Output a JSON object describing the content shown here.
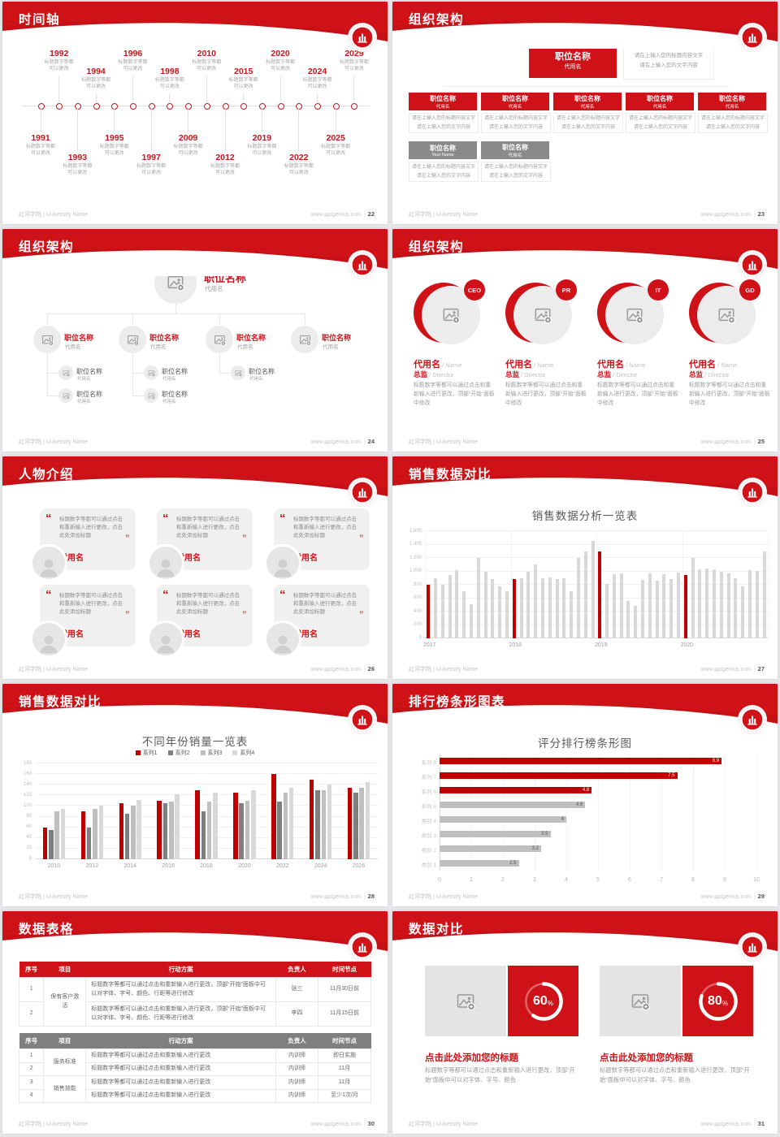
{
  "footer": {
    "left": "红河学院 | University Name",
    "site": "www.pptgenius.com",
    "sep": "|"
  },
  "colors": {
    "primary_red": "#cf1217",
    "chart_red": "#c00000",
    "bar_gray": "#d8d8d8",
    "series2_gray": "#7f7f7f",
    "series3_gray": "#bfbfbf",
    "series4_gray": "#d9d9d9",
    "box_gray": "#8a8a8a"
  },
  "icons": {
    "quote_open": "“",
    "quote_close": "”"
  },
  "slides": {
    "timeline": {
      "title": "时间轴",
      "page": "22",
      "caption": [
        "标题数字等都",
        "可以更改"
      ],
      "points": [
        {
          "year": "1991",
          "side": "bottom",
          "level": 1
        },
        {
          "year": "1992",
          "side": "top",
          "level": 2
        },
        {
          "year": "1993",
          "side": "bottom",
          "level": 2
        },
        {
          "year": "1994",
          "side": "top",
          "level": 1
        },
        {
          "year": "1995",
          "side": "bottom",
          "level": 1
        },
        {
          "year": "1996",
          "side": "top",
          "level": 2
        },
        {
          "year": "1997",
          "side": "bottom",
          "level": 2
        },
        {
          "year": "1998",
          "side": "top",
          "level": 1
        },
        {
          "year": "2009",
          "side": "bottom",
          "level": 1
        },
        {
          "year": "2010",
          "side": "top",
          "level": 2
        },
        {
          "year": "2012",
          "side": "bottom",
          "level": 2
        },
        {
          "year": "2015",
          "side": "top",
          "level": 1
        },
        {
          "year": "2019",
          "side": "bottom",
          "level": 1
        },
        {
          "year": "2020",
          "side": "top",
          "level": 2
        },
        {
          "year": "2022",
          "side": "bottom",
          "level": 2
        },
        {
          "year": "2024",
          "side": "top",
          "level": 1
        },
        {
          "year": "2025",
          "side": "bottom",
          "level": 1
        },
        {
          "year": "2029",
          "side": "top",
          "level": 2
        }
      ]
    },
    "org_boxes": {
      "title": "组织架构",
      "page": "23",
      "box_title": "职位名称",
      "box_sub": "代用名",
      "note": [
        "请在上输入您的标题内容文字",
        "请在上输入您的文字内容"
      ],
      "row1_count": 5,
      "row2": [
        {
          "sub": "Your Name"
        },
        {
          "sub": "代用名"
        }
      ]
    },
    "org_tree": {
      "title": "组织架构",
      "page": "24",
      "node_title": "职位名称",
      "node_sub": "代用名",
      "children": [
        {
          "kids": 2
        },
        {
          "kids": 2
        },
        {
          "kids": 1
        },
        {
          "kids": 0
        }
      ]
    },
    "org_profiles": {
      "title": "组织架构",
      "page": "25",
      "profiles": [
        {
          "badge": "CEO"
        },
        {
          "badge": "PR"
        },
        {
          "badge": "IT"
        },
        {
          "badge": "GD"
        }
      ],
      "name": "代用名",
      "name_en": "Name",
      "role": "总监",
      "role_en": "Director",
      "desc": "标题数字等都可以通过点击和重新输入进行更改，顶部“开始”面板中修改"
    },
    "people": {
      "title": "人物介绍",
      "page": "26",
      "cards_count": 6,
      "quote": "标题数字等都可以通过点击和重新输入进行更改，点击此处添加标题",
      "name": "代用名"
    },
    "sales_monthly": {
      "title": "销售数据对比",
      "page": "27",
      "chart_index": 0
    },
    "sales_yearly": {
      "title": "销售数据对比",
      "page": "28",
      "chart_index": 1
    },
    "ranking": {
      "title": "排行榜条形图表",
      "page": "29",
      "chart_index": 2
    },
    "tables": {
      "title": "数据表格",
      "page": "30",
      "columns": [
        "序号",
        "项目",
        "行动方案",
        "负责人",
        "时间节点"
      ],
      "table1": {
        "groups": [
          {
            "label": "保有客户激活",
            "rows": [
              {
                "no": "1",
                "plan": "标题数字等都可以通过点击和重新输入进行更改，顶部“开始”面板中可以对字体、字号、颜色、行距等进行修改",
                "owner": "张三",
                "time": "11月30日前"
              },
              {
                "no": "2",
                "plan": "标题数字等都可以通过点击和重新输入进行更改，顶部“开始”面板中可以对字体、字号、颜色、行距等进行修改",
                "owner": "李四",
                "time": "11月15日前"
              }
            ]
          }
        ]
      },
      "table2": {
        "groups": [
          {
            "label": "服务标准",
            "rows": [
              {
                "no": "1",
                "plan": "标题数字等都可以通过点击和重新输入进行更改",
                "owner": "内训师",
                "time": "即日实施"
              },
              {
                "no": "2",
                "plan": "标题数字等都可以通过点击和重新输入进行更改",
                "owner": "内训师",
                "time": "11月"
              }
            ]
          },
          {
            "label": "销售技能",
            "rows": [
              {
                "no": "3",
                "plan": "标题数字等都可以通过点击和重新输入进行更改",
                "owner": "内训师",
                "time": "11月"
              },
              {
                "no": "4",
                "plan": "标题数字等都可以通过点击和重新输入进行更改",
                "owner": "内训师",
                "time": "至少1次/月"
              }
            ]
          }
        ]
      }
    },
    "compare": {
      "title": "数据对比",
      "page": "31",
      "panels": [
        {
          "percent": 60,
          "heading": "点击此处添加您的标题",
          "desc": "标题数字等都可以通过点击和重新输入进行更改，顶部“开始”面板中可以对字体、字号、颜色"
        },
        {
          "percent": 80,
          "heading": "点击此处添加您的标题",
          "desc": "标题数字等都可以通过点击和重新输入进行更改，顶部“开始”面板中可以对字体、字号、颜色"
        }
      ]
    }
  },
  "chart_data": [
    {
      "type": "bar",
      "title": "销售数据分析一览表",
      "x_group_labels": [
        "2017",
        "2018",
        "2019",
        "2020"
      ],
      "bars_per_group": 12,
      "values": [
        800,
        900,
        800,
        950,
        1020,
        700,
        510,
        1200,
        990,
        890,
        780,
        700,
        890,
        900,
        1000,
        1100,
        900,
        905,
        880,
        900,
        700,
        1200,
        1300,
        1450,
        1300,
        810,
        960,
        970,
        560,
        490,
        870,
        975,
        865,
        960,
        890,
        980,
        950,
        1200,
        1030,
        1040,
        1030,
        990,
        975,
        895,
        780,
        1020,
        1005,
        1300
      ],
      "red_indices": [
        0,
        12,
        24,
        36
      ],
      "ylim": [
        0,
        1600
      ],
      "yticks": [
        "0",
        "200",
        "400",
        "600",
        "800",
        "1,000",
        "1,200",
        "1,400",
        "1,600"
      ],
      "grid": true
    },
    {
      "type": "bar",
      "title": "不同年份销量一览表",
      "categories": [
        "2010",
        "2012",
        "2014",
        "2016",
        "2018",
        "2020",
        "2022",
        "2024",
        "2026"
      ],
      "series": [
        {
          "name": "系列1",
          "color": "#c00000",
          "values": [
            60,
            90,
            105,
            110,
            130,
            125,
            160,
            150,
            135
          ]
        },
        {
          "name": "系列2",
          "color": "#7f7f7f",
          "values": [
            55,
            60,
            85,
            105,
            90,
            105,
            108,
            130,
            125
          ]
        },
        {
          "name": "系列3",
          "color": "#bfbfbf",
          "values": [
            90,
            95,
            100,
            108,
            108,
            110,
            125,
            130,
            135
          ]
        },
        {
          "name": "系列4",
          "color": "#d9d9d9",
          "values": [
            95,
            100,
            112,
            122,
            125,
            130,
            135,
            140,
            145
          ]
        }
      ],
      "ylim": [
        0,
        180
      ],
      "yticks": [
        "0",
        "20",
        "40",
        "60",
        "80",
        "100",
        "120",
        "140",
        "160",
        "180"
      ],
      "legend_position": "top",
      "grid": true
    },
    {
      "type": "bar-horizontal",
      "title": "评分排行榜条形图",
      "bars": [
        {
          "label": "系列 8",
          "value": 8.9,
          "color": "#c00000",
          "value_label": "8.9"
        },
        {
          "label": "系列 7",
          "value": 7.5,
          "color": "#c00000",
          "value_label": "7.5"
        },
        {
          "label": "系列 6",
          "value": 4.8,
          "color": "#c00000",
          "value_label": "4.8"
        },
        {
          "label": "系列 5",
          "value": 4.6,
          "color": "#bfbfbf",
          "value_label": "4.6"
        },
        {
          "label": "类别 4",
          "value": 4,
          "color": "#bfbfbf",
          "value_label": "4"
        },
        {
          "label": "类别 3",
          "value": 3.5,
          "color": "#bfbfbf",
          "value_label": "3.5"
        },
        {
          "label": "类别 2",
          "value": 3.2,
          "color": "#bfbfbf",
          "value_label": "3.2"
        },
        {
          "label": "类别 1",
          "value": 2.5,
          "color": "#bfbfbf",
          "value_label": "2.5"
        }
      ],
      "xlim": [
        0,
        10
      ],
      "xticks": [
        "0",
        "1",
        "2",
        "3",
        "4",
        "5",
        "6",
        "7",
        "8",
        "9",
        "10"
      ],
      "grid": true
    }
  ]
}
